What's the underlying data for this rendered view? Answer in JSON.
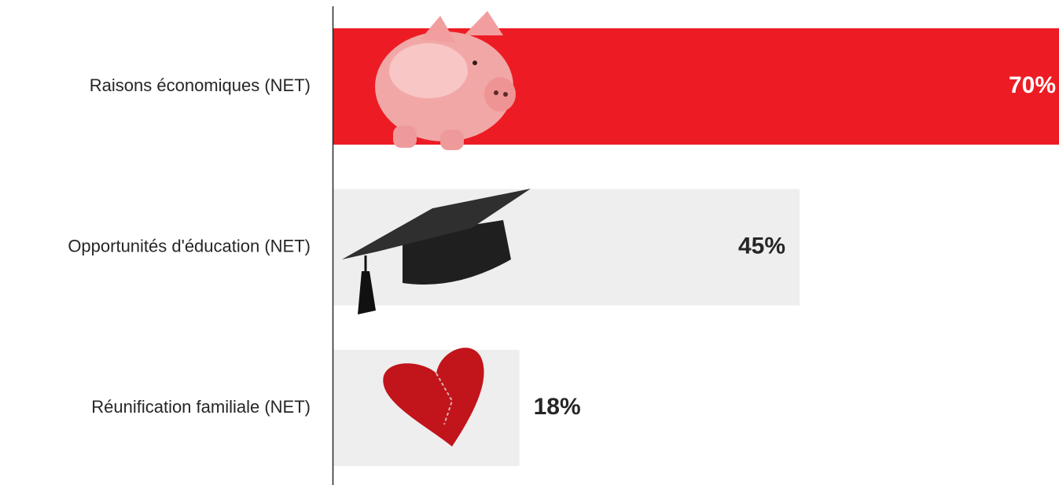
{
  "chart_data": {
    "type": "hbar",
    "categories": [
      "Raisons économiques (NET)",
      "Opportunités d'éducation (NET)",
      "Réunification familiale (NET)"
    ],
    "values": [
      70,
      45,
      18
    ],
    "value_labels": [
      "70%",
      "45%",
      "18%"
    ],
    "colors": [
      "#ed1c24",
      "#eeeeee",
      "#eeeeee"
    ],
    "label_colors": [
      "#ffffff",
      "#262626",
      "#262626"
    ]
  }
}
